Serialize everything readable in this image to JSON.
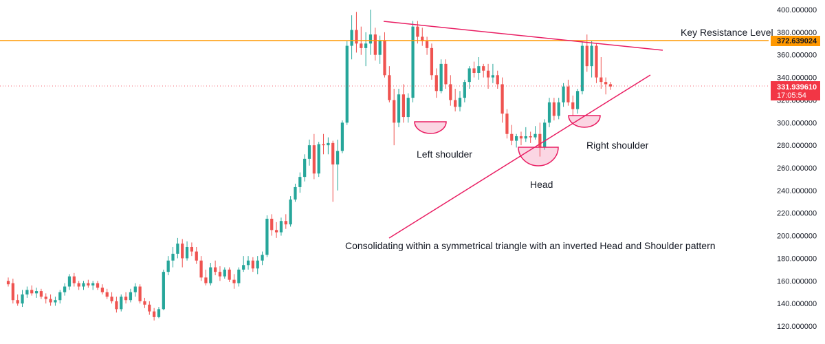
{
  "chart_data": {
    "type": "candlestick",
    "title": "",
    "xlabel": "",
    "ylabel": "",
    "ylim": [
      110,
      410
    ],
    "y_ticks": [
      "120.000000",
      "140.000000",
      "160.000000",
      "180.000000",
      "200.000000",
      "220.000000",
      "240.000000",
      "260.000000",
      "280.000000",
      "300.000000",
      "320.000000",
      "340.000000",
      "360.000000",
      "380.000000",
      "400.000000"
    ],
    "grid": false,
    "colors": {
      "up": "#26a69a",
      "down": "#ef5350",
      "resistance": "#ff9800",
      "pattern": "#e91e63",
      "price_badge": "#f23645"
    },
    "candles": [
      {
        "o": 160,
        "h": 163,
        "l": 155,
        "c": 157
      },
      {
        "o": 158,
        "h": 162,
        "l": 140,
        "c": 143
      },
      {
        "o": 143,
        "h": 148,
        "l": 138,
        "c": 140
      },
      {
        "o": 140,
        "h": 152,
        "l": 137,
        "c": 148
      },
      {
        "o": 148,
        "h": 155,
        "l": 145,
        "c": 152
      },
      {
        "o": 152,
        "h": 156,
        "l": 147,
        "c": 149
      },
      {
        "o": 149,
        "h": 154,
        "l": 145,
        "c": 151
      },
      {
        "o": 151,
        "h": 153,
        "l": 144,
        "c": 146
      },
      {
        "o": 146,
        "h": 149,
        "l": 140,
        "c": 144
      },
      {
        "o": 144,
        "h": 148,
        "l": 138,
        "c": 141
      },
      {
        "o": 141,
        "h": 146,
        "l": 138,
        "c": 143
      },
      {
        "o": 143,
        "h": 152,
        "l": 140,
        "c": 150
      },
      {
        "o": 150,
        "h": 158,
        "l": 147,
        "c": 155
      },
      {
        "o": 155,
        "h": 166,
        "l": 152,
        "c": 164
      },
      {
        "o": 164,
        "h": 167,
        "l": 155,
        "c": 158
      },
      {
        "o": 158,
        "h": 160,
        "l": 152,
        "c": 155
      },
      {
        "o": 155,
        "h": 160,
        "l": 152,
        "c": 158
      },
      {
        "o": 158,
        "h": 161,
        "l": 154,
        "c": 156
      },
      {
        "o": 156,
        "h": 160,
        "l": 152,
        "c": 158
      },
      {
        "o": 158,
        "h": 160,
        "l": 152,
        "c": 154
      },
      {
        "o": 154,
        "h": 157,
        "l": 148,
        "c": 150
      },
      {
        "o": 150,
        "h": 153,
        "l": 144,
        "c": 146
      },
      {
        "o": 146,
        "h": 150,
        "l": 140,
        "c": 142
      },
      {
        "o": 142,
        "h": 146,
        "l": 132,
        "c": 135
      },
      {
        "o": 135,
        "h": 148,
        "l": 133,
        "c": 146
      },
      {
        "o": 146,
        "h": 150,
        "l": 140,
        "c": 143
      },
      {
        "o": 143,
        "h": 153,
        "l": 141,
        "c": 150
      },
      {
        "o": 150,
        "h": 158,
        "l": 146,
        "c": 155
      },
      {
        "o": 155,
        "h": 157,
        "l": 140,
        "c": 142
      },
      {
        "o": 142,
        "h": 145,
        "l": 136,
        "c": 139
      },
      {
        "o": 139,
        "h": 142,
        "l": 130,
        "c": 133
      },
      {
        "o": 133,
        "h": 136,
        "l": 125,
        "c": 128
      },
      {
        "o": 128,
        "h": 137,
        "l": 127,
        "c": 135
      },
      {
        "o": 135,
        "h": 170,
        "l": 134,
        "c": 168
      },
      {
        "o": 168,
        "h": 182,
        "l": 165,
        "c": 178
      },
      {
        "o": 178,
        "h": 190,
        "l": 172,
        "c": 184
      },
      {
        "o": 184,
        "h": 198,
        "l": 180,
        "c": 193
      },
      {
        "o": 193,
        "h": 197,
        "l": 172,
        "c": 180
      },
      {
        "o": 180,
        "h": 195,
        "l": 178,
        "c": 190
      },
      {
        "o": 190,
        "h": 194,
        "l": 182,
        "c": 186
      },
      {
        "o": 186,
        "h": 190,
        "l": 175,
        "c": 178
      },
      {
        "o": 178,
        "h": 182,
        "l": 160,
        "c": 163
      },
      {
        "o": 163,
        "h": 170,
        "l": 156,
        "c": 158
      },
      {
        "o": 158,
        "h": 176,
        "l": 156,
        "c": 172
      },
      {
        "o": 172,
        "h": 178,
        "l": 165,
        "c": 168
      },
      {
        "o": 168,
        "h": 173,
        "l": 160,
        "c": 164
      },
      {
        "o": 164,
        "h": 172,
        "l": 162,
        "c": 170
      },
      {
        "o": 170,
        "h": 172,
        "l": 159,
        "c": 161
      },
      {
        "o": 161,
        "h": 166,
        "l": 153,
        "c": 158
      },
      {
        "o": 158,
        "h": 172,
        "l": 155,
        "c": 170
      },
      {
        "o": 170,
        "h": 182,
        "l": 168,
        "c": 174
      },
      {
        "o": 174,
        "h": 182,
        "l": 170,
        "c": 178
      },
      {
        "o": 178,
        "h": 181,
        "l": 168,
        "c": 171
      },
      {
        "o": 171,
        "h": 182,
        "l": 166,
        "c": 178
      },
      {
        "o": 178,
        "h": 186,
        "l": 174,
        "c": 183
      },
      {
        "o": 183,
        "h": 218,
        "l": 181,
        "c": 215
      },
      {
        "o": 215,
        "h": 219,
        "l": 200,
        "c": 205
      },
      {
        "o": 205,
        "h": 212,
        "l": 198,
        "c": 203
      },
      {
        "o": 203,
        "h": 216,
        "l": 200,
        "c": 213
      },
      {
        "o": 213,
        "h": 219,
        "l": 206,
        "c": 210
      },
      {
        "o": 210,
        "h": 235,
        "l": 208,
        "c": 232
      },
      {
        "o": 232,
        "h": 246,
        "l": 230,
        "c": 243
      },
      {
        "o": 243,
        "h": 256,
        "l": 238,
        "c": 252
      },
      {
        "o": 252,
        "h": 272,
        "l": 248,
        "c": 268
      },
      {
        "o": 268,
        "h": 285,
        "l": 262,
        "c": 280
      },
      {
        "o": 280,
        "h": 290,
        "l": 250,
        "c": 255
      },
      {
        "o": 255,
        "h": 283,
        "l": 252,
        "c": 281
      },
      {
        "o": 281,
        "h": 290,
        "l": 272,
        "c": 280
      },
      {
        "o": 280,
        "h": 287,
        "l": 272,
        "c": 282
      },
      {
        "o": 282,
        "h": 284,
        "l": 230,
        "c": 263
      },
      {
        "o": 263,
        "h": 285,
        "l": 240,
        "c": 275
      },
      {
        "o": 275,
        "h": 302,
        "l": 273,
        "c": 300
      },
      {
        "o": 300,
        "h": 372,
        "l": 298,
        "c": 368
      },
      {
        "o": 368,
        "h": 395,
        "l": 356,
        "c": 382
      },
      {
        "o": 382,
        "h": 398,
        "l": 362,
        "c": 370
      },
      {
        "o": 370,
        "h": 385,
        "l": 360,
        "c": 366
      },
      {
        "o": 366,
        "h": 380,
        "l": 350,
        "c": 370
      },
      {
        "o": 370,
        "h": 400,
        "l": 360,
        "c": 378
      },
      {
        "o": 378,
        "h": 384,
        "l": 355,
        "c": 360
      },
      {
        "o": 360,
        "h": 377,
        "l": 352,
        "c": 373
      },
      {
        "o": 373,
        "h": 380,
        "l": 340,
        "c": 342
      },
      {
        "o": 342,
        "h": 350,
        "l": 318,
        "c": 320
      },
      {
        "o": 320,
        "h": 330,
        "l": 280,
        "c": 300
      },
      {
        "o": 300,
        "h": 330,
        "l": 296,
        "c": 325
      },
      {
        "o": 325,
        "h": 334,
        "l": 300,
        "c": 305
      },
      {
        "o": 305,
        "h": 326,
        "l": 300,
        "c": 322
      },
      {
        "o": 322,
        "h": 390,
        "l": 318,
        "c": 385
      },
      {
        "o": 385,
        "h": 390,
        "l": 370,
        "c": 376
      },
      {
        "o": 376,
        "h": 384,
        "l": 368,
        "c": 372
      },
      {
        "o": 372,
        "h": 376,
        "l": 360,
        "c": 366
      },
      {
        "o": 366,
        "h": 370,
        "l": 338,
        "c": 342
      },
      {
        "o": 342,
        "h": 348,
        "l": 322,
        "c": 328
      },
      {
        "o": 328,
        "h": 356,
        "l": 326,
        "c": 352
      },
      {
        "o": 352,
        "h": 356,
        "l": 330,
        "c": 334
      },
      {
        "o": 334,
        "h": 342,
        "l": 315,
        "c": 320
      },
      {
        "o": 320,
        "h": 330,
        "l": 310,
        "c": 314
      },
      {
        "o": 314,
        "h": 328,
        "l": 310,
        "c": 322
      },
      {
        "o": 322,
        "h": 338,
        "l": 318,
        "c": 336
      },
      {
        "o": 336,
        "h": 350,
        "l": 330,
        "c": 348
      },
      {
        "o": 348,
        "h": 354,
        "l": 340,
        "c": 344
      },
      {
        "o": 344,
        "h": 358,
        "l": 338,
        "c": 350
      },
      {
        "o": 350,
        "h": 352,
        "l": 340,
        "c": 346
      },
      {
        "o": 346,
        "h": 352,
        "l": 330,
        "c": 340
      },
      {
        "o": 340,
        "h": 352,
        "l": 335,
        "c": 342
      },
      {
        "o": 342,
        "h": 346,
        "l": 330,
        "c": 334
      },
      {
        "o": 334,
        "h": 340,
        "l": 300,
        "c": 308
      },
      {
        "o": 308,
        "h": 312,
        "l": 286,
        "c": 290
      },
      {
        "o": 290,
        "h": 298,
        "l": 280,
        "c": 284
      },
      {
        "o": 284,
        "h": 290,
        "l": 278,
        "c": 288
      },
      {
        "o": 288,
        "h": 292,
        "l": 280,
        "c": 286
      },
      {
        "o": 286,
        "h": 296,
        "l": 283,
        "c": 288
      },
      {
        "o": 288,
        "h": 292,
        "l": 282,
        "c": 287
      },
      {
        "o": 287,
        "h": 297,
        "l": 285,
        "c": 290
      },
      {
        "o": 290,
        "h": 300,
        "l": 270,
        "c": 278
      },
      {
        "o": 278,
        "h": 303,
        "l": 276,
        "c": 300
      },
      {
        "o": 300,
        "h": 322,
        "l": 296,
        "c": 318
      },
      {
        "o": 318,
        "h": 322,
        "l": 302,
        "c": 306
      },
      {
        "o": 306,
        "h": 322,
        "l": 303,
        "c": 318
      },
      {
        "o": 318,
        "h": 335,
        "l": 314,
        "c": 332
      },
      {
        "o": 332,
        "h": 338,
        "l": 315,
        "c": 318
      },
      {
        "o": 318,
        "h": 324,
        "l": 306,
        "c": 312
      },
      {
        "o": 312,
        "h": 330,
        "l": 308,
        "c": 328
      },
      {
        "o": 328,
        "h": 372,
        "l": 325,
        "c": 368
      },
      {
        "o": 368,
        "h": 378,
        "l": 345,
        "c": 350
      },
      {
        "o": 350,
        "h": 372,
        "l": 340,
        "c": 368
      },
      {
        "o": 368,
        "h": 370,
        "l": 335,
        "c": 340
      },
      {
        "o": 340,
        "h": 358,
        "l": 330,
        "c": 336
      },
      {
        "o": 336,
        "h": 340,
        "l": 325,
        "c": 334
      },
      {
        "o": 334,
        "h": 336,
        "l": 329,
        "c": 332
      }
    ],
    "resistance": {
      "label": "Key Resistance Level",
      "value": 372.639024,
      "value_label": "372.639024"
    },
    "current_price": {
      "value": 331.93961,
      "value_label": "331.939610",
      "countdown": "17:05:54"
    },
    "annotations": [
      {
        "name": "left-shoulder",
        "text": "Left shoulder"
      },
      {
        "name": "head",
        "text": "Head"
      },
      {
        "name": "right-shoulder",
        "text": "Right shoulder"
      },
      {
        "name": "pattern-note",
        "text": "Consolidating within  a symmetrical triangle with an inverted Head and Shoulder pattern"
      }
    ]
  }
}
